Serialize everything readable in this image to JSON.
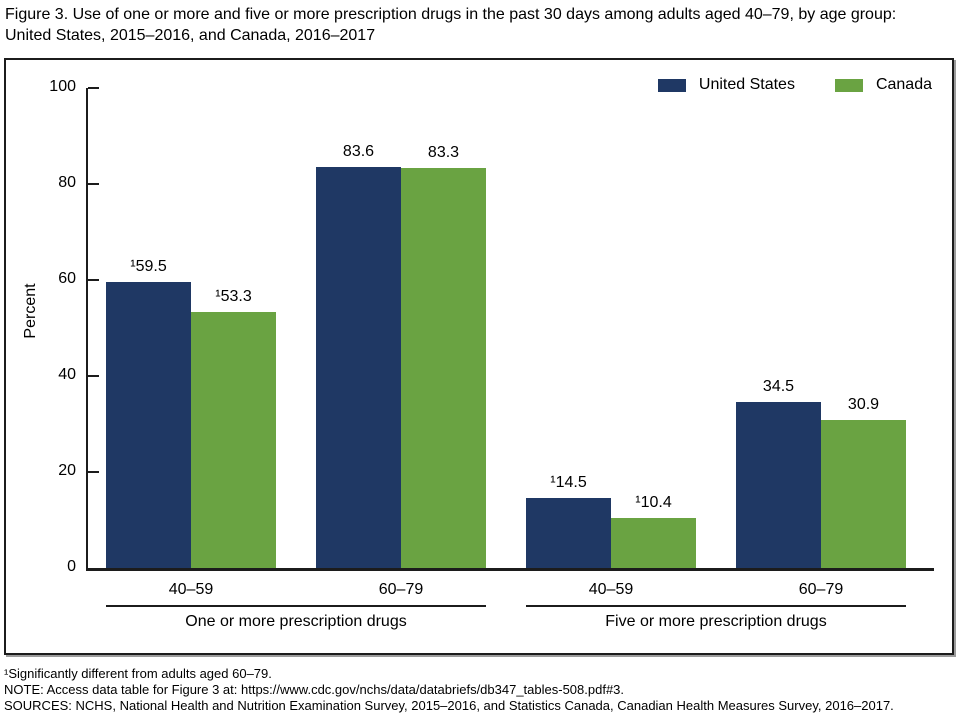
{
  "figure": {
    "title": "Figure 3. Use of one or more and five or more prescription drugs in the past 30 days among adults aged 40–79, by age group: United States, 2015–2016, and Canada, 2016–2017"
  },
  "chart_data": {
    "type": "bar",
    "title": "Use of one or more and five or more prescription drugs in the past 30 days among adults aged 40–79, by age group",
    "ylabel": "Percent",
    "xlabel": "",
    "ylim": [
      0,
      100
    ],
    "yticks": [
      0,
      20,
      40,
      60,
      80,
      100
    ],
    "grid": false,
    "legend_position": "top-right",
    "series": [
      {
        "name": "United States",
        "color": "#1f3864"
      },
      {
        "name": "Canada",
        "color": "#6aa342"
      }
    ],
    "sections": [
      {
        "label": "One or more prescription drugs",
        "groups": [
          {
            "category": "40–59",
            "values": [
              59.5,
              53.3
            ],
            "value_labels": [
              "¹59.5",
              "¹53.3"
            ]
          },
          {
            "category": "60–79",
            "values": [
              83.6,
              83.3
            ],
            "value_labels": [
              "83.6",
              "83.3"
            ]
          }
        ]
      },
      {
        "label": "Five or more prescription drugs",
        "groups": [
          {
            "category": "40–59",
            "values": [
              14.5,
              10.4
            ],
            "value_labels": [
              "¹14.5",
              "¹10.4"
            ]
          },
          {
            "category": "60–79",
            "values": [
              34.5,
              30.9
            ],
            "value_labels": [
              "34.5",
              "30.9"
            ]
          }
        ]
      }
    ]
  },
  "footnotes": {
    "significance": "¹Significantly different from adults aged 60–79.",
    "note": "NOTE: Access data table for Figure 3 at: https://www.cdc.gov/nchs/data/databriefs/db347_tables-508.pdf#3.",
    "sources": "SOURCES: NCHS, National Health and Nutrition Examination Survey, 2015–2016, and Statistics Canada, Canadian Health Measures Survey, 2016–2017."
  }
}
